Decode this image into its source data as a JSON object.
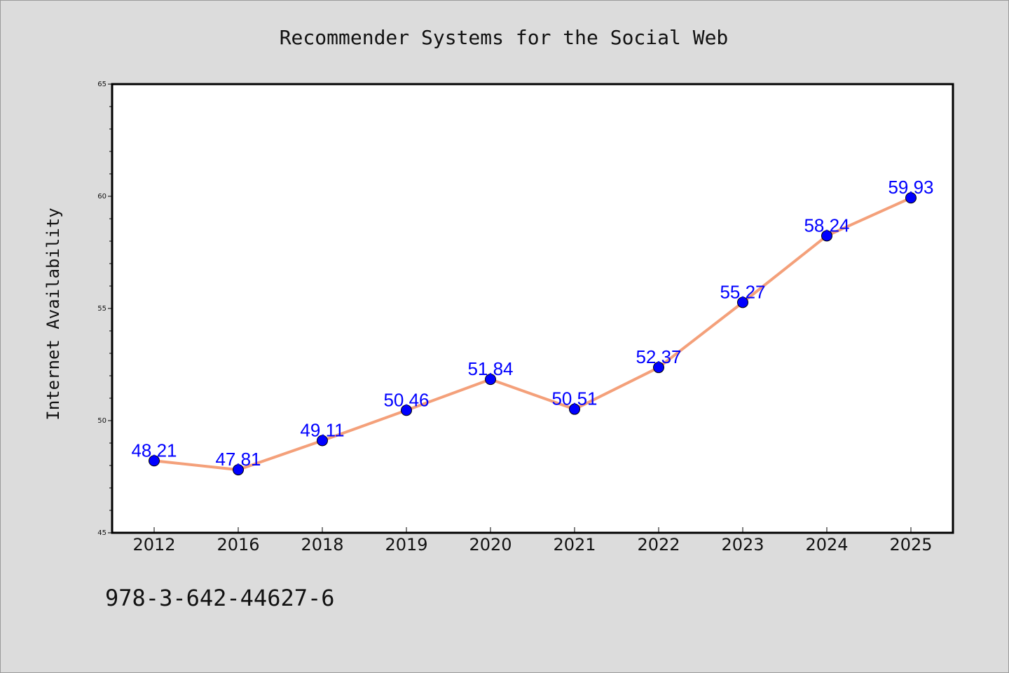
{
  "footnote": "978-3-642-44627-6",
  "colors": {
    "background": "#dcdcdc",
    "plot_background": "#ffffff",
    "line": "#f4a07a",
    "marker": "#0000ff",
    "label": "#0000ff"
  },
  "chart_data": {
    "type": "line",
    "title": "Recommender Systems for the Social Web",
    "xlabel": "",
    "ylabel": "Internet Availability",
    "categories": [
      "2012",
      "2016",
      "2018",
      "2019",
      "2020",
      "2021",
      "2022",
      "2023",
      "2024",
      "2025"
    ],
    "series": [
      {
        "values": [
          48.21,
          47.81,
          49.11,
          50.46,
          51.84,
          50.51,
          52.37,
          55.27,
          58.24,
          59.93
        ]
      }
    ],
    "data_labels": [
      "48.21",
      "47.81",
      "49.11",
      "50.46",
      "51.84",
      "50.51",
      "52.37",
      "55.27",
      "58.24",
      "59.93"
    ],
    "ylim": [
      45,
      65
    ],
    "yticks": [
      "45",
      "50",
      "55",
      "60",
      "65"
    ],
    "grid": false,
    "legend": "none"
  }
}
